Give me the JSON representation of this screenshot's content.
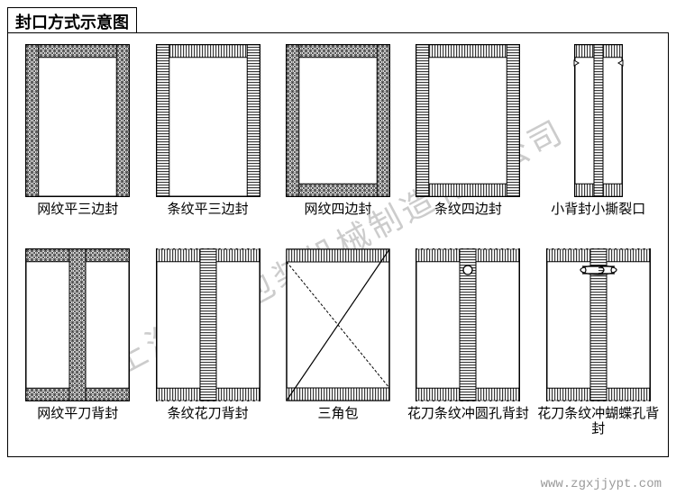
{
  "title": "封口方式示意图",
  "watermark": "上海亭城包装机械制造有限公司",
  "footer_url": "www.zgxjjypt.com",
  "colors": {
    "stroke": "#000000",
    "fill": "#ffffff",
    "hatch": "#3a3a3a",
    "bg": "#ffffff"
  },
  "label_fontsize": 15,
  "items": [
    {
      "id": "mesh-flat-3side",
      "label": "网纹平三边封",
      "shape": "rect",
      "borders": {
        "top": "mesh",
        "left": "mesh",
        "right": "mesh",
        "bottom": "none"
      },
      "center_seam": null,
      "cutouts": []
    },
    {
      "id": "stripe-flat-3side",
      "label": "条纹平三边封",
      "shape": "rect",
      "borders": {
        "top": "stripe",
        "left": "stripe",
        "right": "stripe",
        "bottom": "none"
      },
      "center_seam": null,
      "cutouts": []
    },
    {
      "id": "mesh-4side",
      "label": "网纹四边封",
      "shape": "rect",
      "borders": {
        "top": "mesh",
        "left": "mesh",
        "right": "mesh",
        "bottom": "mesh"
      },
      "center_seam": null,
      "cutouts": []
    },
    {
      "id": "stripe-4side",
      "label": "条纹四边封",
      "shape": "rect",
      "borders": {
        "top": "stripe",
        "left": "stripe",
        "right": "stripe",
        "bottom": "stripe"
      },
      "center_seam": null,
      "cutouts": []
    },
    {
      "id": "small-back-tear",
      "label": "小背封小撕裂口",
      "shape": "narrow-rect",
      "borders": {
        "top": "stripe",
        "left": "none",
        "right": "none",
        "bottom": "stripe"
      },
      "center_seam": "stripe-narrow",
      "cutouts": [
        "tear-notch"
      ]
    },
    {
      "id": "mesh-flat-back",
      "label": "网纹平刀背封",
      "shape": "rect",
      "borders": {
        "top": "mesh",
        "left": "none",
        "right": "none",
        "bottom": "mesh"
      },
      "center_seam": "mesh",
      "cutouts": []
    },
    {
      "id": "stripe-flower-back",
      "label": "条纹花刀背封",
      "shape": "rect",
      "borders": {
        "top": "stripe-zigzag",
        "left": "none",
        "right": "none",
        "bottom": "stripe-zigzag"
      },
      "center_seam": "stripe",
      "cutouts": []
    },
    {
      "id": "triangle-pack",
      "label": "三角包",
      "shape": "triangle-fold",
      "borders": {},
      "center_seam": null,
      "cutouts": []
    },
    {
      "id": "flower-stripe-roundhole-back",
      "label": "花刀条纹冲圆孔背封",
      "shape": "rect",
      "borders": {
        "top": "stripe-zigzag",
        "left": "none",
        "right": "none",
        "bottom": "stripe-zigzag"
      },
      "center_seam": "stripe",
      "cutouts": [
        "round-hole"
      ]
    },
    {
      "id": "flower-stripe-butterflyhole-back",
      "label": "花刀条纹冲蝴蝶孔背封",
      "shape": "rect",
      "borders": {
        "top": "stripe-zigzag",
        "left": "none",
        "right": "none",
        "bottom": "stripe-zigzag"
      },
      "center_seam": "stripe",
      "cutouts": [
        "butterfly-hole"
      ]
    }
  ]
}
